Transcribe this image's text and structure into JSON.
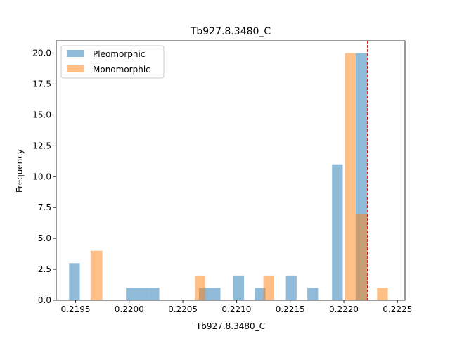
{
  "chart_data": {
    "type": "bar",
    "title": "Tb927.8.3480_C",
    "xlabel": "Tb927.8.3480_C",
    "ylabel": "Frequency",
    "xlim": [
      0.21932,
      0.22257
    ],
    "ylim": [
      0,
      21
    ],
    "x_ticks": [
      {
        "value": 0.2195,
        "label": "0.2195"
      },
      {
        "value": 0.22,
        "label": "0.2200"
      },
      {
        "value": 0.2205,
        "label": "0.2205"
      },
      {
        "value": 0.221,
        "label": "0.2210"
      },
      {
        "value": 0.2215,
        "label": "0.2215"
      },
      {
        "value": 0.222,
        "label": "0.2220"
      },
      {
        "value": 0.2225,
        "label": "0.2225"
      }
    ],
    "y_ticks": [
      {
        "value": 0,
        "label": "0.0"
      },
      {
        "value": 2.5,
        "label": "2.5"
      },
      {
        "value": 5,
        "label": "5.0"
      },
      {
        "value": 7.5,
        "label": "7.5"
      },
      {
        "value": 10,
        "label": "10.0"
      },
      {
        "value": 12.5,
        "label": "12.5"
      },
      {
        "value": 15,
        "label": "15.0"
      },
      {
        "value": 17.5,
        "label": "17.5"
      },
      {
        "value": 20,
        "label": "20.0"
      }
    ],
    "legend_position": "upper-left",
    "series": [
      {
        "name": "Pleomorphic",
        "color": "#1f77b4",
        "alpha": 0.5,
        "bins": [
          {
            "x0": 0.21944,
            "x1": 0.21954,
            "count": 3
          },
          {
            "x0": 0.21997,
            "x1": 0.22007,
            "count": 1
          },
          {
            "x0": 0.22007,
            "x1": 0.22018,
            "count": 1
          },
          {
            "x0": 0.22018,
            "x1": 0.22028,
            "count": 1
          },
          {
            "x0": 0.22065,
            "x1": 0.22075,
            "count": 1
          },
          {
            "x0": 0.22075,
            "x1": 0.22085,
            "count": 1
          },
          {
            "x0": 0.22097,
            "x1": 0.22107,
            "count": 2
          },
          {
            "x0": 0.22117,
            "x1": 0.22127,
            "count": 1
          },
          {
            "x0": 0.22146,
            "x1": 0.22156,
            "count": 2
          },
          {
            "x0": 0.22166,
            "x1": 0.22176,
            "count": 1
          },
          {
            "x0": 0.22189,
            "x1": 0.22199,
            "count": 11
          },
          {
            "x0": 0.22211,
            "x1": 0.22222,
            "count": 20
          }
        ]
      },
      {
        "name": "Monomorphic",
        "color": "#ff7f0e",
        "alpha": 0.5,
        "bins": [
          {
            "x0": 0.21964,
            "x1": 0.21975,
            "count": 4
          },
          {
            "x0": 0.22061,
            "x1": 0.22071,
            "count": 2
          },
          {
            "x0": 0.22125,
            "x1": 0.22135,
            "count": 2
          },
          {
            "x0": 0.22201,
            "x1": 0.22211,
            "count": 20
          },
          {
            "x0": 0.22211,
            "x1": 0.22222,
            "count": 7
          },
          {
            "x0": 0.22231,
            "x1": 0.22241,
            "count": 1
          }
        ]
      }
    ],
    "reference_line": {
      "x": 0.22222,
      "color": "#d62728",
      "style": "dashed"
    }
  }
}
